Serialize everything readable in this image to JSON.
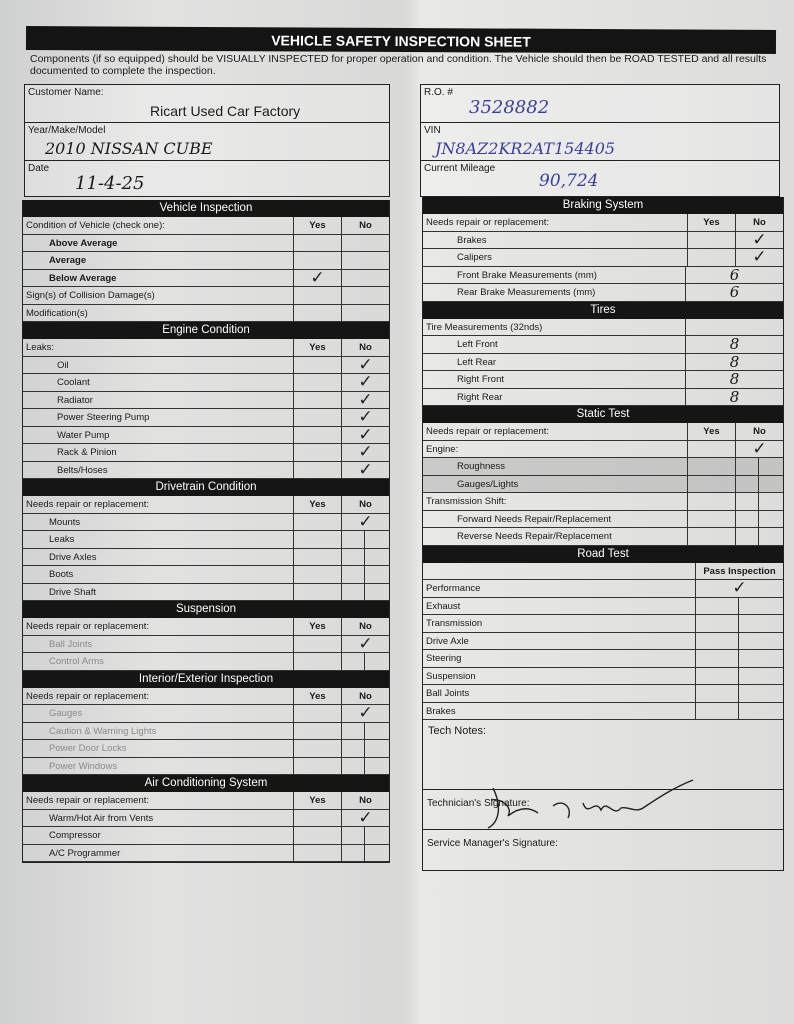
{
  "title": "VEHICLE SAFETY INSPECTION SHEET",
  "intro": "Components (if so equipped) should be VISUALLY INSPECTED for proper operation and condition. The Vehicle should then be ROAD TESTED and all results documented to complete the inspection.",
  "fields": {
    "customer_label": "Customer Name:",
    "customer": "Ricart Used Car Factory",
    "ymm_label": "Year/Make/Model",
    "ymm": "2010 NISSAN CUBE",
    "date_label": "Date",
    "date": "11-4-25",
    "ro_label": "R.O. #",
    "ro": "3528882",
    "vin_label": "VIN",
    "vin": "JN8AZ2KR2AT154405",
    "mileage_label": "Current Mileage",
    "mileage": "90,724"
  },
  "left_sections": [
    {
      "title": "Vehicle Inspection",
      "head": "Condition of Vehicle (check one):",
      "cols": [
        "Yes",
        "No"
      ],
      "rows": [
        {
          "label": "Above Average",
          "style": "bold ind1"
        },
        {
          "label": "Average",
          "style": "bold ind1"
        },
        {
          "label": "Below Average",
          "style": "bold ind1",
          "marks": [
            "check",
            ""
          ]
        },
        {
          "label": "Sign(s) of Collision Damage(s)"
        },
        {
          "label": "Modification(s)"
        }
      ]
    },
    {
      "title": "Engine Condition",
      "head": "Leaks:",
      "cols": [
        "Yes",
        "No"
      ],
      "rows": [
        {
          "label": "Oil",
          "style": "ind2",
          "marks": [
            "",
            "check"
          ]
        },
        {
          "label": "Coolant",
          "style": "ind2",
          "marks": [
            "",
            "check"
          ]
        },
        {
          "label": "Radiator",
          "style": "ind2",
          "marks": [
            "",
            "check"
          ]
        },
        {
          "label": "Power Steering Pump",
          "style": "ind2",
          "marks": [
            "",
            "check"
          ]
        },
        {
          "label": "Water Pump",
          "style": "ind2",
          "marks": [
            "",
            "check"
          ]
        },
        {
          "label": "Rack & Pinion",
          "style": "ind2",
          "marks": [
            "",
            "check"
          ]
        },
        {
          "label": "Belts/Hoses",
          "style": "ind2",
          "marks": [
            "",
            "check"
          ]
        }
      ]
    },
    {
      "title": "Drivetrain Condition",
      "head": "Needs repair or replacement:",
      "cols": [
        "Yes",
        "No"
      ],
      "rows": [
        {
          "label": "Mounts",
          "style": "ind1",
          "marks": [
            "",
            "check"
          ]
        },
        {
          "label": "Leaks",
          "style": "ind1",
          "marks": [
            "",
            "line"
          ]
        },
        {
          "label": "Drive Axles",
          "style": "ind1",
          "marks": [
            "",
            "line"
          ]
        },
        {
          "label": "Boots",
          "style": "ind1",
          "marks": [
            "",
            "line"
          ]
        },
        {
          "label": "Drive Shaft",
          "style": "ind1",
          "marks": [
            "",
            "line"
          ]
        }
      ]
    },
    {
      "title": "Suspension",
      "head": "Needs repair or replacement:",
      "cols": [
        "Yes",
        "No"
      ],
      "rows": [
        {
          "label": "Ball Joints",
          "style": "ind1 gray",
          "marks": [
            "",
            "check"
          ]
        },
        {
          "label": "Control Arms",
          "style": "ind1 gray",
          "marks": [
            "",
            "line"
          ]
        }
      ]
    },
    {
      "title": "Interior/Exterior Inspection",
      "head": "Needs repair or replacement:",
      "cols": [
        "Yes",
        "No"
      ],
      "rows": [
        {
          "label": "Gauges",
          "style": "ind1 gray",
          "marks": [
            "",
            "check"
          ]
        },
        {
          "label": "Caution & Warning Lights",
          "style": "ind1 gray",
          "marks": [
            "",
            "line"
          ]
        },
        {
          "label": "Power Door Locks",
          "style": "ind1 gray",
          "marks": [
            "",
            "line"
          ]
        },
        {
          "label": "Power Windows",
          "style": "ind1 gray",
          "marks": [
            "",
            "line"
          ]
        }
      ]
    },
    {
      "title": "Air Conditioning System",
      "head": "Needs repair or replacement:",
      "cols": [
        "Yes",
        "No"
      ],
      "rows": [
        {
          "label": "Warm/Hot Air from Vents",
          "style": "ind1",
          "marks": [
            "",
            "check"
          ]
        },
        {
          "label": "Compressor",
          "style": "ind1",
          "marks": [
            "",
            "line"
          ]
        },
        {
          "label": "A/C Programmer",
          "style": "ind1",
          "marks": [
            "",
            "line"
          ]
        }
      ]
    }
  ],
  "right_sections": [
    {
      "title": "Braking System",
      "head": "Needs repair or replacement:",
      "cols": [
        "Yes",
        "No"
      ],
      "rows": [
        {
          "label": "Brakes",
          "style": "ind2",
          "marks": [
            "",
            "check"
          ]
        },
        {
          "label": "Calipers",
          "style": "ind2",
          "marks": [
            "",
            "check"
          ]
        },
        {
          "label": "Front Brake Measurements (mm)",
          "style": "ind2",
          "value": "6"
        },
        {
          "label": "Rear Brake Measurements (mm)",
          "style": "ind2",
          "value": "6"
        }
      ]
    },
    {
      "title": "Tires",
      "head": "Tire Measurements (32nds)",
      "cols": [],
      "rows": [
        {
          "label": "Left Front",
          "style": "ind2",
          "value": "8"
        },
        {
          "label": "Left Rear",
          "style": "ind2",
          "value": "8"
        },
        {
          "label": "Right Front",
          "style": "ind2",
          "value": "8"
        },
        {
          "label": "Right Rear",
          "style": "ind2",
          "value": "8"
        }
      ]
    },
    {
      "title": "Static Test",
      "head": "Needs repair or replacement:",
      "cols": [
        "Yes",
        "No"
      ],
      "rows": [
        {
          "label": "Engine:",
          "marks": [
            "",
            "check"
          ]
        },
        {
          "label": "Roughness",
          "style": "ind2 shade",
          "marks": [
            "",
            "line"
          ]
        },
        {
          "label": "Gauges/Lights",
          "style": "ind2 shade",
          "marks": [
            "",
            "line"
          ]
        },
        {
          "label": "Transmission Shift:",
          "marks": [
            "",
            "line"
          ]
        },
        {
          "label": "Forward Needs Repair/Replacement",
          "style": "ind2",
          "marks": [
            "",
            "line"
          ]
        },
        {
          "label": "Reverse Needs Repair/Replacement",
          "style": "ind2",
          "marks": [
            "",
            "line"
          ]
        }
      ]
    },
    {
      "title": "Road Test",
      "head": "",
      "cols": [
        "Pass Inspection"
      ],
      "rows": [
        {
          "label": "Performance",
          "marks": [
            "check"
          ]
        },
        {
          "label": "Exhaust",
          "marks": [
            "line"
          ]
        },
        {
          "label": "Transmission",
          "marks": [
            "line"
          ]
        },
        {
          "label": "Drive Axle",
          "marks": [
            "line"
          ]
        },
        {
          "label": "Steering",
          "marks": [
            "line"
          ]
        },
        {
          "label": "Suspension",
          "marks": [
            "line"
          ]
        },
        {
          "label": "Ball Joints",
          "marks": [
            "line"
          ]
        },
        {
          "label": "Brakes",
          "marks": [
            "line"
          ]
        }
      ]
    }
  ],
  "tech_notes_label": "Tech Notes:",
  "technician_signature_label": "Technician's Signature:",
  "technician_signature": "handwritten signature",
  "service_manager_label": "Service Manager's Signature:",
  "icons": {
    "check": "check-mark-icon"
  }
}
